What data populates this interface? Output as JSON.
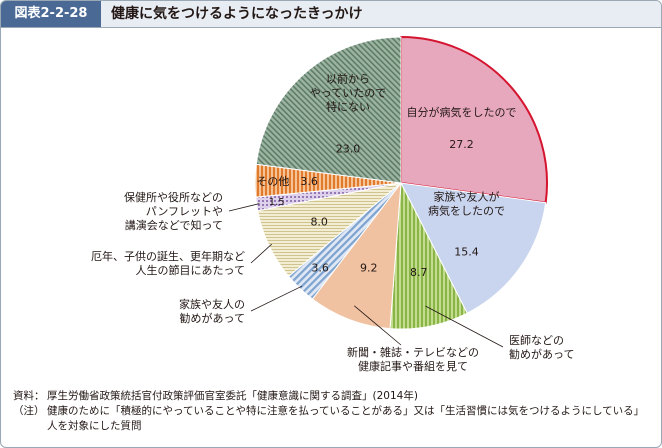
{
  "header": {
    "figure_number": "図表2-2-28",
    "title": "健康に気をつけるようになったきっかけ"
  },
  "chart_data": {
    "type": "pie",
    "start": "12 o'clock",
    "direction": "clockwise",
    "slices": [
      {
        "label": [
          "自分が病気をしたので"
        ],
        "value": 27.2,
        "color": "#e7a8bd",
        "pattern": "solid",
        "highlighted": true
      },
      {
        "label": [
          "家族や友人が",
          "病気をしたので"
        ],
        "value": 15.4,
        "color": "#c9d4ee",
        "pattern": "solid"
      },
      {
        "label": [
          "医師などの",
          "勧めがあって"
        ],
        "value": 8.7,
        "color": "#a3c95f",
        "pattern": "vertical-stripes"
      },
      {
        "label": [
          "新聞・雑誌・テレビなどの",
          "健康記事や番組を見て"
        ],
        "value": 9.2,
        "color": "#f0c2a2",
        "pattern": "solid"
      },
      {
        "label": [
          "家族や友人の",
          "勧めがあって"
        ],
        "value": 3.6,
        "color": "#8aaed6",
        "pattern": "diagonal-stripes"
      },
      {
        "label": [
          "厄年、子供の誕生、更年期など",
          "人生の節目にあたって"
        ],
        "value": 8.0,
        "color": "#e8e1b8",
        "pattern": "horizontal-lines"
      },
      {
        "label": [
          "保健所や役所などの",
          "パンフレットや",
          "講演会などで知って"
        ],
        "value": 1.5,
        "color": "#b79ad0",
        "pattern": "dots"
      },
      {
        "label": [
          "その他"
        ],
        "value": 3.6,
        "color": "#e9883c",
        "pattern": "vertical-stripes"
      },
      {
        "label": [
          "以前から",
          "やっていたので",
          "特にない"
        ],
        "value": 23.0,
        "color": "#7d9a85",
        "pattern": "diagonal-hatch"
      }
    ]
  },
  "notes": [
    {
      "label": "資料：",
      "text": "厚生労働省政策統括官付政策評価官室委託「健康意識に関する調査」(2014年)"
    },
    {
      "label": "（注）",
      "text": "健康のために「積極的にやっていることや特に注意を払っていることがある」又は「生活習慣には気をつけるようにしている」人を対象にした質問"
    }
  ]
}
